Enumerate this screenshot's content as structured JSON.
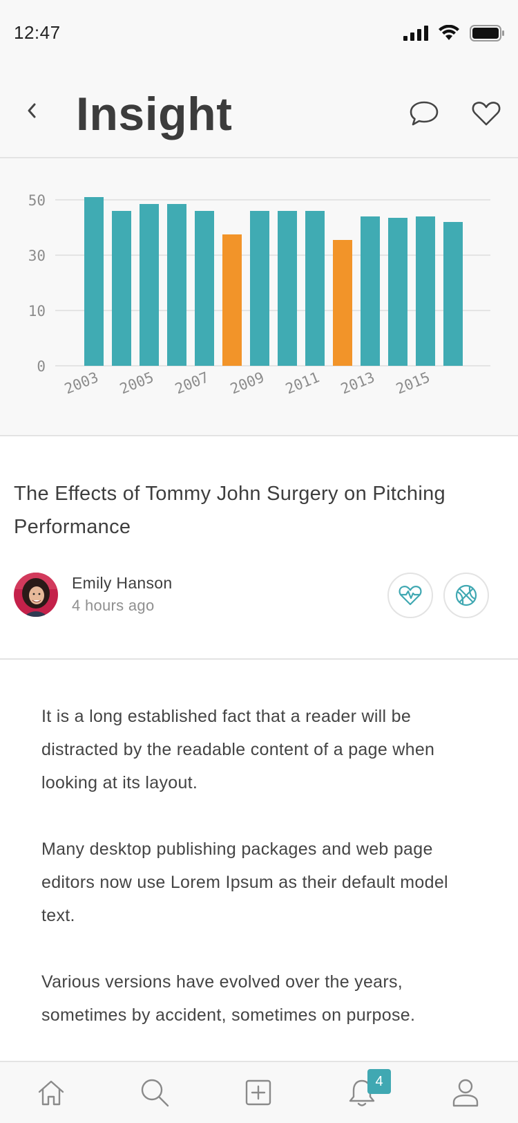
{
  "status_bar": {
    "time": "12:47"
  },
  "nav": {
    "title": "Insight",
    "icons": [
      "chevron-left-icon",
      "chat-bubble-icon",
      "heart-icon"
    ]
  },
  "chart_data": {
    "type": "bar",
    "categories": [
      "2003",
      "2004",
      "2005",
      "2006",
      "2007",
      "2008",
      "2009",
      "2010",
      "2011",
      "2012",
      "2013",
      "2014",
      "2015",
      "2016"
    ],
    "x_tick_labels": [
      "2003",
      "2005",
      "2007",
      "2009",
      "2011",
      "2013",
      "2015"
    ],
    "values": [
      51,
      46,
      48.5,
      48.5,
      46,
      37.5,
      46,
      46,
      46,
      35.5,
      44,
      43.5,
      44,
      42
    ],
    "highlighted_categories": [
      "2008",
      "2012"
    ],
    "y_ticks": [
      "0",
      "10",
      "30",
      "50"
    ],
    "y_tick_values": [
      0,
      10,
      30,
      50
    ],
    "grid": true,
    "colors": {
      "default": "#40abb3",
      "highlight": "#f29429",
      "grid": "#dddddd",
      "tick_text": "#8c8c8c"
    }
  },
  "article": {
    "title": "The Effects of Tommy John Surgery on Pitching Performance",
    "author_name": "Emily Hanson",
    "posted": "4 hours ago",
    "paragraphs": [
      "It is a long established fact that a reader will be distracted by the readable content of a page when looking at its layout.",
      "Many desktop publishing packages and web page editors now use Lorem Ipsum as their default model text.",
      "Various versions have evolved over the years, sometimes by accident, sometimes on purpose."
    ],
    "action_icons": [
      "heartbeat-icon",
      "basketball-icon"
    ]
  },
  "tab_bar": {
    "items": [
      "home-icon",
      "search-icon",
      "add-icon",
      "bell-icon",
      "profile-icon"
    ],
    "notification_count": "4"
  },
  "colors": {
    "accent": "#40a8b2",
    "highlight": "#f29429"
  }
}
